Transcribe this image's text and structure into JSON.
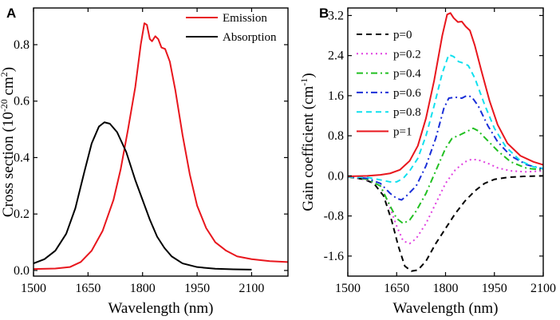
{
  "chart_data": [
    {
      "type": "line",
      "panel": "A",
      "xlabel": "Wavelength (nm)",
      "ylabel": {
        "main": "Cross section (10",
        "exp": "-20",
        "mid": " cm",
        "exp2": "2",
        "end": ")"
      },
      "xlim": [
        1500,
        2200
      ],
      "ylim": [
        -0.02,
        0.93
      ],
      "xticks": [
        1500,
        1650,
        1800,
        1950,
        2100
      ],
      "yticks": [
        0.0,
        0.2,
        0.4,
        0.6,
        0.8
      ],
      "ytick_labels": [
        "0.0",
        "0.2",
        "0.4",
        "0.6",
        "0.8"
      ],
      "legend_position": "top-right",
      "series": [
        {
          "name": "Emission",
          "color": "#e8161d",
          "dash": "solid",
          "points": [
            [
              1500,
              0.005
            ],
            [
              1560,
              0.007
            ],
            [
              1600,
              0.012
            ],
            [
              1630,
              0.03
            ],
            [
              1660,
              0.07
            ],
            [
              1690,
              0.14
            ],
            [
              1720,
              0.25
            ],
            [
              1740,
              0.36
            ],
            [
              1760,
              0.5
            ],
            [
              1780,
              0.65
            ],
            [
              1795,
              0.8
            ],
            [
              1805,
              0.876
            ],
            [
              1812,
              0.87
            ],
            [
              1820,
              0.82
            ],
            [
              1826,
              0.812
            ],
            [
              1835,
              0.83
            ],
            [
              1843,
              0.82
            ],
            [
              1852,
              0.79
            ],
            [
              1862,
              0.785
            ],
            [
              1875,
              0.74
            ],
            [
              1890,
              0.64
            ],
            [
              1910,
              0.48
            ],
            [
              1930,
              0.34
            ],
            [
              1950,
              0.23
            ],
            [
              1975,
              0.15
            ],
            [
              2000,
              0.1
            ],
            [
              2030,
              0.07
            ],
            [
              2060,
              0.05
            ],
            [
              2100,
              0.04
            ],
            [
              2150,
              0.033
            ],
            [
              2200,
              0.03
            ]
          ]
        },
        {
          "name": "Absorption",
          "color": "#000000",
          "dash": "solid",
          "points": [
            [
              1500,
              0.025
            ],
            [
              1530,
              0.04
            ],
            [
              1560,
              0.07
            ],
            [
              1590,
              0.13
            ],
            [
              1615,
              0.22
            ],
            [
              1640,
              0.35
            ],
            [
              1660,
              0.45
            ],
            [
              1680,
              0.51
            ],
            [
              1695,
              0.525
            ],
            [
              1710,
              0.52
            ],
            [
              1730,
              0.49
            ],
            [
              1755,
              0.42
            ],
            [
              1780,
              0.32
            ],
            [
              1800,
              0.25
            ],
            [
              1820,
              0.18
            ],
            [
              1840,
              0.12
            ],
            [
              1860,
              0.08
            ],
            [
              1880,
              0.05
            ],
            [
              1910,
              0.025
            ],
            [
              1950,
              0.012
            ],
            [
              2000,
              0.006
            ],
            [
              2050,
              0.004
            ],
            [
              2100,
              0.003
            ]
          ]
        }
      ]
    },
    {
      "type": "line",
      "panel": "B",
      "xlabel": "Wavelength (nm)",
      "ylabel": {
        "main": "Gain coefficient (cm",
        "exp": "-1",
        "end": ")"
      },
      "xlim": [
        1500,
        2100
      ],
      "ylim": [
        -2.0,
        3.35
      ],
      "xticks": [
        1500,
        1650,
        1800,
        1950,
        2100
      ],
      "yticks": [
        -1.6,
        -0.8,
        0.0,
        0.8,
        1.6,
        2.4,
        3.2
      ],
      "ytick_labels": [
        "-1.6",
        "-0.8",
        "0.0",
        "0.8",
        "1.6",
        "2.4",
        "3.2"
      ],
      "legend_position": "top-left",
      "series": [
        {
          "name": "p=0",
          "color": "#000000",
          "dash": "dash",
          "points": [
            [
              1500,
              -0.02
            ],
            [
              1550,
              -0.07
            ],
            [
              1580,
              -0.15
            ],
            [
              1610,
              -0.4
            ],
            [
              1635,
              -0.9
            ],
            [
              1655,
              -1.4
            ],
            [
              1675,
              -1.8
            ],
            [
              1695,
              -1.9
            ],
            [
              1715,
              -1.88
            ],
            [
              1740,
              -1.7
            ],
            [
              1770,
              -1.35
            ],
            [
              1800,
              -1.05
            ],
            [
              1830,
              -0.75
            ],
            [
              1860,
              -0.5
            ],
            [
              1890,
              -0.3
            ],
            [
              1920,
              -0.15
            ],
            [
              1950,
              -0.07
            ],
            [
              1990,
              -0.03
            ],
            [
              2040,
              -0.01
            ],
            [
              2100,
              0.0
            ]
          ]
        },
        {
          "name": "p=0.2",
          "color": "#e040e0",
          "dash": "dot",
          "points": [
            [
              1500,
              -0.02
            ],
            [
              1560,
              -0.08
            ],
            [
              1600,
              -0.2
            ],
            [
              1625,
              -0.55
            ],
            [
              1650,
              -1.0
            ],
            [
              1670,
              -1.3
            ],
            [
              1690,
              -1.35
            ],
            [
              1710,
              -1.25
            ],
            [
              1740,
              -0.95
            ],
            [
              1770,
              -0.55
            ],
            [
              1800,
              -0.15
            ],
            [
              1830,
              0.12
            ],
            [
              1860,
              0.28
            ],
            [
              1880,
              0.33
            ],
            [
              1900,
              0.32
            ],
            [
              1930,
              0.25
            ],
            [
              1960,
              0.16
            ],
            [
              2000,
              0.1
            ],
            [
              2050,
              0.08
            ],
            [
              2100,
              0.1
            ]
          ]
        },
        {
          "name": "p=0.4",
          "color": "#22c022",
          "dash": "dashdot",
          "points": [
            [
              1500,
              -0.02
            ],
            [
              1560,
              -0.07
            ],
            [
              1600,
              -0.2
            ],
            [
              1630,
              -0.6
            ],
            [
              1650,
              -0.85
            ],
            [
              1670,
              -0.95
            ],
            [
              1690,
              -0.88
            ],
            [
              1710,
              -0.7
            ],
            [
              1740,
              -0.35
            ],
            [
              1770,
              0.1
            ],
            [
              1800,
              0.55
            ],
            [
              1820,
              0.75
            ],
            [
              1845,
              0.82
            ],
            [
              1870,
              0.9
            ],
            [
              1885,
              0.95
            ],
            [
              1900,
              0.9
            ],
            [
              1930,
              0.7
            ],
            [
              1960,
              0.5
            ],
            [
              2000,
              0.28
            ],
            [
              2050,
              0.15
            ],
            [
              2100,
              0.12
            ]
          ]
        },
        {
          "name": "p=0.6",
          "color": "#1a2fd8",
          "dash": "dashdot",
          "points": [
            [
              1500,
              -0.02
            ],
            [
              1560,
              -0.05
            ],
            [
              1600,
              -0.15
            ],
            [
              1630,
              -0.35
            ],
            [
              1650,
              -0.45
            ],
            [
              1665,
              -0.48
            ],
            [
              1680,
              -0.4
            ],
            [
              1710,
              -0.2
            ],
            [
              1740,
              0.2
            ],
            [
              1770,
              0.75
            ],
            [
              1795,
              1.35
            ],
            [
              1810,
              1.55
            ],
            [
              1830,
              1.57
            ],
            [
              1850,
              1.55
            ],
            [
              1865,
              1.6
            ],
            [
              1880,
              1.58
            ],
            [
              1900,
              1.4
            ],
            [
              1930,
              1.0
            ],
            [
              1960,
              0.68
            ],
            [
              2000,
              0.4
            ],
            [
              2050,
              0.22
            ],
            [
              2100,
              0.14
            ]
          ]
        },
        {
          "name": "p=0.8",
          "color": "#10e0ee",
          "dash": "dash",
          "points": [
            [
              1500,
              -0.02
            ],
            [
              1560,
              -0.03
            ],
            [
              1600,
              -0.08
            ],
            [
              1630,
              -0.12
            ],
            [
              1650,
              -0.12
            ],
            [
              1670,
              -0.05
            ],
            [
              1690,
              0.1
            ],
            [
              1715,
              0.35
            ],
            [
              1740,
              0.8
            ],
            [
              1765,
              1.4
            ],
            [
              1790,
              2.05
            ],
            [
              1810,
              2.42
            ],
            [
              1825,
              2.38
            ],
            [
              1840,
              2.28
            ],
            [
              1855,
              2.25
            ],
            [
              1870,
              2.2
            ],
            [
              1890,
              1.95
            ],
            [
              1920,
              1.42
            ],
            [
              1950,
              0.95
            ],
            [
              1985,
              0.58
            ],
            [
              2030,
              0.3
            ],
            [
              2070,
              0.18
            ],
            [
              2100,
              0.15
            ]
          ]
        },
        {
          "name": "p=1",
          "color": "#e8161d",
          "dash": "solid",
          "points": [
            [
              1500,
              -0.01
            ],
            [
              1560,
              0.0
            ],
            [
              1600,
              0.02
            ],
            [
              1630,
              0.05
            ],
            [
              1660,
              0.12
            ],
            [
              1690,
              0.3
            ],
            [
              1715,
              0.6
            ],
            [
              1740,
              1.15
            ],
            [
              1765,
              1.9
            ],
            [
              1790,
              2.8
            ],
            [
              1805,
              3.22
            ],
            [
              1815,
              3.25
            ],
            [
              1825,
              3.15
            ],
            [
              1838,
              3.07
            ],
            [
              1850,
              3.08
            ],
            [
              1862,
              2.98
            ],
            [
              1875,
              2.9
            ],
            [
              1890,
              2.6
            ],
            [
              1910,
              2.1
            ],
            [
              1935,
              1.5
            ],
            [
              1960,
              1.02
            ],
            [
              1990,
              0.65
            ],
            [
              2030,
              0.4
            ],
            [
              2070,
              0.28
            ],
            [
              2100,
              0.22
            ]
          ]
        }
      ]
    }
  ]
}
